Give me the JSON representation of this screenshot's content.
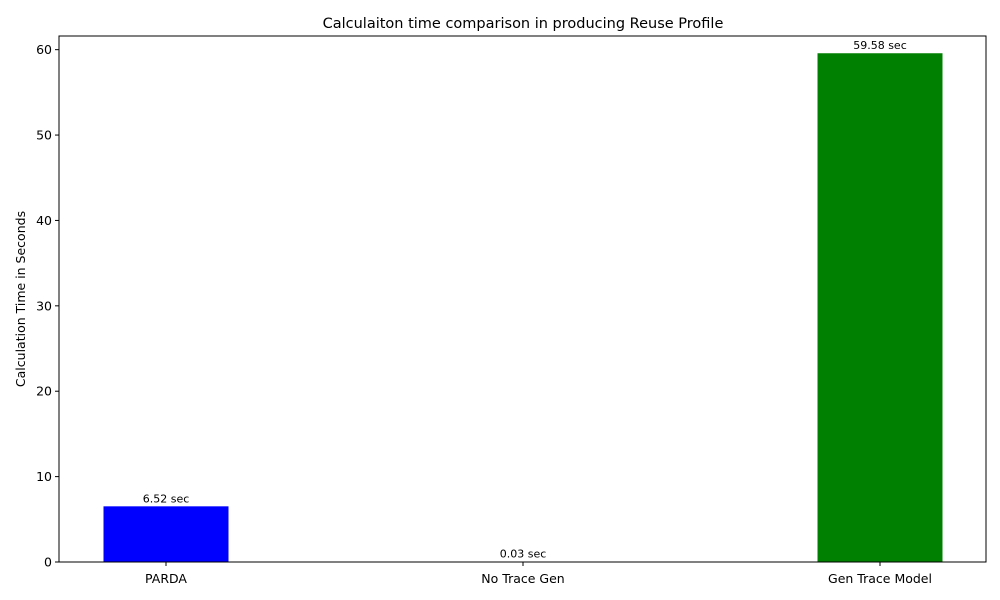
{
  "chart_data": {
    "type": "bar",
    "title": "Calculaiton time comparison in producing Reuse Profile",
    "xlabel": "",
    "ylabel": "Calculation Time in Seconds",
    "categories": [
      "PARDA",
      "No Trace Gen",
      "Gen Trace Model"
    ],
    "values": [
      6.52,
      0.03,
      59.58
    ],
    "data_labels": [
      "6.52 sec",
      "0.03 sec",
      "59.58 sec"
    ],
    "colors": [
      "#0000ff",
      "#808080",
      "#008000"
    ],
    "ylim": [
      0,
      61.6
    ],
    "yticks": [
      0,
      10,
      20,
      30,
      40,
      50,
      60
    ],
    "ytick_labels": [
      "0",
      "10",
      "20",
      "30",
      "40",
      "50",
      "60"
    ],
    "grid": false,
    "legend": "none"
  }
}
